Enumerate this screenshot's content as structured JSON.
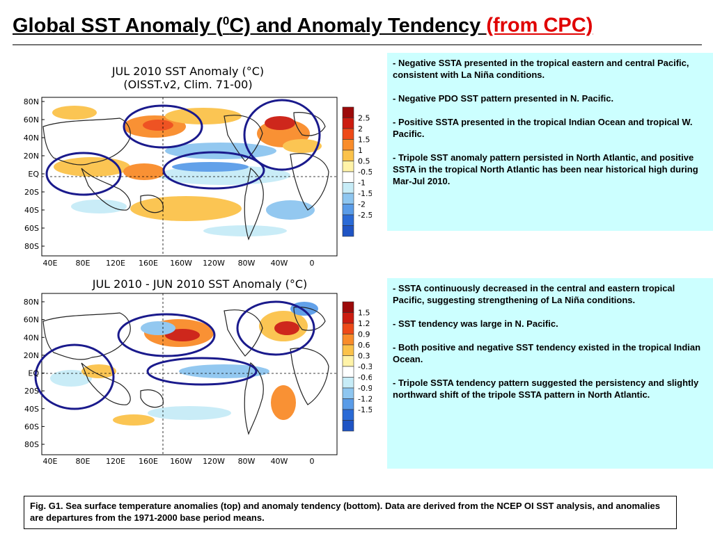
{
  "title": {
    "pre": "Global SST Anomaly (",
    "sup": "0",
    "post": "C) and Anomaly Tendency ",
    "source": "(from CPC)"
  },
  "top_map": {
    "title_line1": "JUL 2010 SST Anomaly (°C)",
    "title_line2": "(OISST.v2, Clim. 71-00)",
    "lat_labels": [
      "80N",
      "60N",
      "40N",
      "20N",
      "EQ",
      "20S",
      "40S",
      "60S",
      "80S"
    ],
    "lon_labels": [
      "40E",
      "80E",
      "120E",
      "160E",
      "160W",
      "120W",
      "80W",
      "40W",
      "0"
    ],
    "legend_values": [
      "2.5",
      "2",
      "1.5",
      "1",
      "0.5",
      "-0.5",
      "-1",
      "-1.5",
      "-2",
      "-2.5"
    ],
    "legend_colors": [
      "#9c0a0a",
      "#cc1c10",
      "#ee4a18",
      "#f98c2a",
      "#fbc24a",
      "#fff3a8",
      "#ffffff",
      "#c7ecf7",
      "#8ec6f0",
      "#5a9ce8",
      "#2a6ad6",
      "#1f54c4"
    ]
  },
  "bottom_map": {
    "title": "JUL 2010 - JUN 2010 SST Anomaly (°C)",
    "lat_labels": [
      "80N",
      "60N",
      "40N",
      "20N",
      "EQ",
      "20S",
      "40S",
      "60S",
      "80S"
    ],
    "lon_labels": [
      "40E",
      "80E",
      "120E",
      "160E",
      "160W",
      "120W",
      "80W",
      "40W",
      "0"
    ],
    "legend_values": [
      "1.5",
      "1.2",
      "0.9",
      "0.6",
      "0.3",
      "-0.3",
      "-0.6",
      "-0.9",
      "-1.2",
      "-1.5"
    ],
    "legend_colors": [
      "#9c0a0a",
      "#cc1c10",
      "#ee4a18",
      "#f98c2a",
      "#fbc24a",
      "#fff3a8",
      "#ffffff",
      "#c7ecf7",
      "#8ec6f0",
      "#5a9ce8",
      "#2a6ad6",
      "#1f54c4"
    ]
  },
  "top_notes": [
    "- Negative SSTA presented in the tropical eastern and central Pacific, consistent with La Niña conditions.",
    "- Negative PDO SST pattern presented in N. Pacific.",
    "- Positive SSTA presented in the tropical Indian Ocean and tropical W. Pacific.",
    "- Tripole SST anomaly  pattern  persisted  in North Atlantic, and positive SSTA in the tropical North Atlantic has been near historical high during Mar-Jul 2010."
  ],
  "bottom_notes": [
    "- SSTA continuously decreased in the central  and eastern tropical Pacific, suggesting strengthening of La Niña conditions.",
    "- SST tendency was large in N. Pacific.",
    "- Both positive and negative SST tendency existed in the tropical Indian Ocean.",
    "- Tripole SSTA tendency pattern suggested the persistency and slightly northward shift of the tripole SSTA pattern in North Atlantic."
  ],
  "caption": "Fig. G1. Sea surface temperature anomalies (top) and anomaly tendency (bottom). Data are derived from the NCEP OI SST analysis, and anomalies are departures from the 1971-2000 base period means."
}
